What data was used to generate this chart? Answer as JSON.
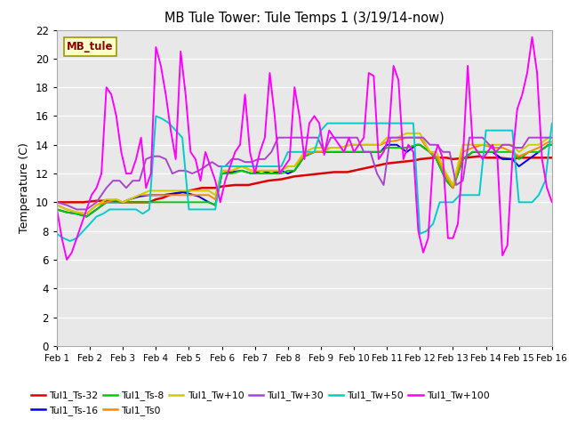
{
  "title": "MB Tule Tower: Tule Temps 1 (3/19/14-now)",
  "ylabel": "Temperature (C)",
  "xlim": [
    0,
    15
  ],
  "ylim": [
    0,
    22
  ],
  "yticks": [
    0,
    2,
    4,
    6,
    8,
    10,
    12,
    14,
    16,
    18,
    20,
    22
  ],
  "xtick_labels": [
    "Feb 1",
    "Feb 2",
    "Feb 3",
    "Feb 4",
    "Feb 5",
    "Feb 6",
    "Feb 7",
    "Feb 8",
    "Feb 9",
    "Feb 10",
    "Feb 11",
    "Feb 12",
    "Feb 13",
    "Feb 14",
    "Feb 15",
    "Feb 16"
  ],
  "bg_color": "#e8e8e8",
  "fig_color": "#ffffff",
  "series": [
    {
      "name": "Tul1_Ts-32",
      "color": "#dd0000",
      "lw": 1.8,
      "x": [
        0,
        0.2,
        0.4,
        0.6,
        0.8,
        1.0,
        1.2,
        1.4,
        1.6,
        1.8,
        2.0,
        2.2,
        2.4,
        2.6,
        2.8,
        3.0,
        3.2,
        3.4,
        3.6,
        3.8,
        4.0,
        4.2,
        4.4,
        4.6,
        4.8,
        5.0,
        5.2,
        5.4,
        5.6,
        5.8,
        6.0,
        6.2,
        6.4,
        6.6,
        6.8,
        7.0,
        7.2,
        7.4,
        7.6,
        7.8,
        8.0,
        8.2,
        8.4,
        8.6,
        8.8,
        9.0,
        9.2,
        9.4,
        9.6,
        9.8,
        10.0,
        10.2,
        10.4,
        10.6,
        10.8,
        11.0,
        11.2,
        11.4,
        11.6,
        11.8,
        12.0,
        12.2,
        12.4,
        12.6,
        12.8,
        13.0,
        13.2,
        13.4,
        13.6,
        13.8,
        14.0,
        14.2,
        14.4,
        14.6,
        14.8,
        15.0
      ],
      "y": [
        10.0,
        10.0,
        10.0,
        10.0,
        10.0,
        10.05,
        10.1,
        10.1,
        10.1,
        10.05,
        10.0,
        10.0,
        10.0,
        10.0,
        10.0,
        10.2,
        10.3,
        10.5,
        10.6,
        10.7,
        10.8,
        10.9,
        11.0,
        11.0,
        11.0,
        11.1,
        11.15,
        11.2,
        11.2,
        11.2,
        11.3,
        11.4,
        11.5,
        11.55,
        11.6,
        11.7,
        11.8,
        11.85,
        11.9,
        11.95,
        12.0,
        12.05,
        12.1,
        12.1,
        12.1,
        12.2,
        12.3,
        12.4,
        12.5,
        12.6,
        12.7,
        12.75,
        12.8,
        12.85,
        12.9,
        13.0,
        13.05,
        13.1,
        13.1,
        13.1,
        13.0,
        13.05,
        13.1,
        13.15,
        13.2,
        13.1,
        13.1,
        13.1,
        13.05,
        13.0,
        13.1,
        13.1,
        13.1,
        13.1,
        13.1,
        13.1
      ]
    },
    {
      "name": "Tul1_Ts-16",
      "color": "#0000dd",
      "lw": 1.4,
      "x": [
        0,
        0.3,
        0.6,
        0.9,
        1.2,
        1.5,
        1.8,
        2.0,
        2.2,
        2.5,
        2.8,
        3.0,
        3.2,
        3.5,
        3.8,
        4.0,
        4.3,
        4.6,
        4.8,
        5.0,
        5.3,
        5.6,
        5.9,
        6.2,
        6.5,
        6.8,
        7.0,
        7.2,
        7.5,
        7.8,
        8.0,
        8.3,
        8.6,
        8.9,
        9.2,
        9.5,
        9.8,
        10.0,
        10.3,
        10.6,
        10.9,
        11.0,
        11.3,
        11.5,
        11.8,
        12.0,
        12.3,
        12.6,
        12.9,
        13.2,
        13.5,
        13.8,
        14.0,
        14.3,
        14.6,
        14.9,
        15.0
      ],
      "y": [
        9.5,
        9.3,
        9.2,
        9.0,
        9.5,
        10.0,
        10.0,
        10.0,
        10.2,
        10.4,
        10.5,
        10.5,
        10.5,
        10.6,
        10.7,
        10.6,
        10.4,
        10.0,
        9.8,
        12.0,
        12.1,
        12.2,
        12.0,
        12.2,
        12.0,
        12.2,
        12.0,
        12.2,
        13.2,
        13.5,
        13.5,
        13.5,
        13.5,
        13.5,
        13.5,
        13.5,
        13.5,
        14.0,
        14.0,
        13.5,
        14.0,
        14.0,
        13.5,
        13.0,
        11.5,
        11.0,
        13.0,
        13.5,
        13.5,
        13.5,
        13.0,
        13.0,
        12.5,
        13.0,
        13.5,
        14.0,
        14.0
      ]
    },
    {
      "name": "Tul1_Ts-8",
      "color": "#00cc00",
      "lw": 1.4,
      "x": [
        0,
        0.3,
        0.6,
        0.9,
        1.2,
        1.5,
        1.8,
        2.0,
        2.2,
        2.5,
        2.8,
        3.0,
        3.2,
        3.5,
        3.8,
        4.0,
        4.3,
        4.6,
        4.8,
        5.0,
        5.3,
        5.6,
        5.9,
        6.2,
        6.5,
        6.8,
        7.0,
        7.2,
        7.5,
        7.8,
        8.0,
        8.3,
        8.6,
        8.9,
        9.2,
        9.5,
        9.8,
        10.0,
        10.3,
        10.6,
        10.9,
        11.0,
        11.3,
        11.5,
        11.8,
        12.0,
        12.3,
        12.6,
        12.9,
        13.2,
        13.5,
        13.8,
        14.0,
        14.3,
        14.6,
        14.9,
        15.0
      ],
      "y": [
        9.5,
        9.3,
        9.2,
        9.0,
        9.5,
        10.0,
        10.0,
        10.0,
        10.0,
        10.0,
        10.0,
        10.0,
        10.0,
        10.0,
        10.0,
        10.0,
        10.0,
        10.0,
        9.8,
        12.0,
        12.0,
        12.2,
        12.0,
        12.0,
        12.0,
        12.0,
        12.2,
        12.2,
        13.2,
        13.5,
        13.5,
        13.5,
        13.5,
        13.5,
        13.5,
        13.5,
        13.5,
        13.8,
        13.8,
        13.8,
        14.0,
        14.0,
        13.5,
        13.0,
        11.5,
        11.0,
        13.0,
        13.5,
        13.5,
        13.5,
        13.5,
        13.5,
        13.0,
        13.5,
        13.5,
        14.0,
        14.0
      ]
    },
    {
      "name": "Tul1_Ts0",
      "color": "#ff8800",
      "lw": 1.4,
      "x": [
        0,
        0.3,
        0.6,
        0.9,
        1.2,
        1.5,
        1.8,
        2.0,
        2.2,
        2.5,
        2.8,
        3.0,
        3.2,
        3.5,
        3.8,
        4.0,
        4.3,
        4.6,
        4.8,
        5.0,
        5.3,
        5.6,
        5.9,
        6.2,
        6.5,
        6.8,
        7.0,
        7.2,
        7.5,
        7.8,
        8.0,
        8.3,
        8.6,
        8.9,
        9.2,
        9.5,
        9.8,
        10.0,
        10.3,
        10.6,
        10.9,
        11.0,
        11.3,
        11.5,
        11.8,
        12.0,
        12.3,
        12.6,
        12.9,
        13.2,
        13.5,
        13.8,
        14.0,
        14.3,
        14.6,
        14.9,
        15.0
      ],
      "y": [
        9.8,
        9.5,
        9.3,
        9.2,
        9.8,
        10.0,
        10.2,
        10.0,
        10.2,
        10.5,
        10.5,
        10.5,
        10.5,
        10.5,
        10.5,
        10.5,
        10.5,
        10.5,
        10.2,
        12.2,
        12.2,
        12.5,
        12.2,
        12.2,
        12.2,
        12.2,
        12.5,
        12.5,
        13.3,
        13.5,
        13.5,
        13.8,
        13.8,
        14.0,
        14.0,
        14.0,
        14.0,
        14.2,
        14.3,
        14.5,
        14.5,
        14.5,
        13.5,
        13.2,
        11.8,
        11.0,
        13.5,
        13.8,
        14.0,
        13.8,
        13.8,
        13.5,
        13.2,
        13.5,
        13.8,
        14.2,
        14.2
      ]
    },
    {
      "name": "Tul1_Tw+10",
      "color": "#cccc00",
      "lw": 1.4,
      "x": [
        0,
        0.3,
        0.6,
        0.9,
        1.2,
        1.5,
        1.8,
        2.0,
        2.2,
        2.5,
        2.8,
        3.0,
        3.2,
        3.5,
        3.8,
        4.0,
        4.3,
        4.6,
        4.8,
        5.0,
        5.3,
        5.6,
        5.9,
        6.2,
        6.5,
        6.8,
        7.0,
        7.2,
        7.5,
        7.8,
        8.0,
        8.3,
        8.6,
        8.9,
        9.2,
        9.5,
        9.8,
        10.0,
        10.3,
        10.6,
        10.9,
        11.0,
        11.3,
        11.5,
        11.8,
        12.0,
        12.3,
        12.6,
        12.9,
        13.2,
        13.5,
        13.8,
        14.0,
        14.3,
        14.6,
        14.9,
        15.0
      ],
      "y": [
        9.8,
        9.5,
        9.3,
        9.2,
        9.8,
        10.2,
        10.2,
        10.0,
        10.2,
        10.5,
        10.8,
        10.8,
        10.8,
        10.8,
        10.8,
        10.8,
        10.8,
        10.8,
        10.5,
        12.2,
        12.2,
        12.5,
        12.2,
        12.2,
        12.2,
        12.2,
        12.5,
        12.5,
        13.5,
        13.8,
        13.8,
        13.8,
        13.8,
        14.0,
        14.0,
        14.0,
        14.0,
        14.5,
        14.5,
        14.8,
        14.8,
        14.8,
        13.5,
        13.5,
        12.0,
        11.2,
        14.0,
        14.0,
        14.0,
        14.0,
        14.0,
        14.0,
        13.5,
        14.0,
        14.0,
        14.5,
        14.5
      ]
    },
    {
      "name": "Tul1_Tw+30",
      "color": "#aa44cc",
      "lw": 1.4,
      "x": [
        0,
        0.3,
        0.6,
        0.9,
        1.2,
        1.5,
        1.7,
        1.9,
        2.1,
        2.3,
        2.5,
        2.7,
        2.9,
        3.1,
        3.3,
        3.5,
        3.7,
        3.9,
        4.1,
        4.3,
        4.5,
        4.7,
        4.9,
        5.1,
        5.3,
        5.5,
        5.7,
        5.9,
        6.1,
        6.3,
        6.5,
        6.7,
        6.9,
        7.1,
        7.3,
        7.5,
        7.7,
        7.9,
        8.1,
        8.3,
        8.5,
        8.7,
        8.9,
        9.1,
        9.3,
        9.5,
        9.7,
        9.9,
        10.1,
        10.3,
        10.5,
        10.7,
        10.9,
        11.1,
        11.3,
        11.5,
        11.7,
        11.9,
        12.1,
        12.3,
        12.5,
        12.7,
        12.9,
        13.1,
        13.3,
        13.5,
        13.7,
        13.9,
        14.1,
        14.3,
        14.5,
        14.7,
        14.9,
        15.0
      ],
      "y": [
        10.0,
        9.8,
        9.5,
        9.5,
        10.0,
        11.0,
        11.5,
        11.5,
        11.0,
        11.5,
        11.5,
        13.0,
        13.2,
        13.2,
        13.0,
        12.0,
        12.2,
        12.2,
        12.0,
        12.2,
        12.5,
        12.8,
        12.5,
        12.5,
        13.0,
        13.0,
        12.8,
        12.8,
        13.0,
        13.0,
        13.5,
        14.5,
        14.5,
        14.5,
        14.5,
        14.5,
        14.5,
        14.5,
        13.5,
        14.5,
        14.5,
        14.5,
        14.5,
        14.5,
        13.5,
        13.5,
        12.0,
        11.2,
        14.5,
        14.5,
        14.5,
        14.5,
        14.5,
        14.5,
        14.0,
        14.0,
        13.5,
        13.5,
        11.2,
        11.5,
        14.5,
        14.5,
        14.5,
        14.0,
        13.5,
        14.0,
        14.0,
        13.8,
        13.8,
        14.5,
        14.5,
        14.5,
        14.5,
        14.5
      ]
    },
    {
      "name": "Tul1_Tw+50",
      "color": "#00cccc",
      "lw": 1.4,
      "x": [
        0,
        0.2,
        0.4,
        0.6,
        0.8,
        1.0,
        1.2,
        1.4,
        1.6,
        1.8,
        2.0,
        2.2,
        2.4,
        2.6,
        2.8,
        3.0,
        3.2,
        3.4,
        3.6,
        3.8,
        4.0,
        4.2,
        4.4,
        4.6,
        4.8,
        5.0,
        5.2,
        5.4,
        5.6,
        5.8,
        6.0,
        6.2,
        6.4,
        6.6,
        6.8,
        7.0,
        7.2,
        7.4,
        7.6,
        7.8,
        8.0,
        8.2,
        8.4,
        8.6,
        8.8,
        9.0,
        9.2,
        9.4,
        9.6,
        9.8,
        10.0,
        10.2,
        10.4,
        10.6,
        10.8,
        11.0,
        11.2,
        11.4,
        11.6,
        11.8,
        12.0,
        12.2,
        12.4,
        12.6,
        12.8,
        13.0,
        13.2,
        13.4,
        13.6,
        13.8,
        14.0,
        14.2,
        14.4,
        14.6,
        14.8,
        15.0
      ],
      "y": [
        7.8,
        7.5,
        7.3,
        7.5,
        8.0,
        8.5,
        9.0,
        9.2,
        9.5,
        9.5,
        9.5,
        9.5,
        9.5,
        9.2,
        9.5,
        16.0,
        15.8,
        15.5,
        15.0,
        14.5,
        9.5,
        9.5,
        9.5,
        9.5,
        9.5,
        12.5,
        12.5,
        12.5,
        12.5,
        12.5,
        12.5,
        12.5,
        12.5,
        12.5,
        12.5,
        13.5,
        13.5,
        13.5,
        13.5,
        13.5,
        15.0,
        15.5,
        15.5,
        15.5,
        15.5,
        15.5,
        15.5,
        15.5,
        15.5,
        15.5,
        15.5,
        15.5,
        15.5,
        15.5,
        15.5,
        7.8,
        8.0,
        8.5,
        10.0,
        10.0,
        10.0,
        10.5,
        10.5,
        10.5,
        10.5,
        15.0,
        15.0,
        15.0,
        15.0,
        15.0,
        10.0,
        10.0,
        10.0,
        10.5,
        11.5,
        15.5
      ]
    },
    {
      "name": "Tul1_Tw+100",
      "color": "#ff00ff",
      "lw": 1.4,
      "x": [
        0,
        0.15,
        0.3,
        0.45,
        0.6,
        0.75,
        0.9,
        1.05,
        1.2,
        1.35,
        1.5,
        1.65,
        1.8,
        1.95,
        2.1,
        2.25,
        2.4,
        2.55,
        2.7,
        2.85,
        3.0,
        3.15,
        3.3,
        3.45,
        3.6,
        3.75,
        3.9,
        4.05,
        4.2,
        4.35,
        4.5,
        4.65,
        4.8,
        4.95,
        5.1,
        5.25,
        5.4,
        5.55,
        5.7,
        5.85,
        6.0,
        6.15,
        6.3,
        6.45,
        6.6,
        6.75,
        6.9,
        7.05,
        7.2,
        7.35,
        7.5,
        7.65,
        7.8,
        7.95,
        8.1,
        8.25,
        8.4,
        8.55,
        8.7,
        8.85,
        9.0,
        9.15,
        9.3,
        9.45,
        9.6,
        9.75,
        9.9,
        10.05,
        10.2,
        10.35,
        10.5,
        10.65,
        10.8,
        10.95,
        11.1,
        11.25,
        11.4,
        11.55,
        11.7,
        11.85,
        12.0,
        12.15,
        12.3,
        12.45,
        12.6,
        12.75,
        12.9,
        13.05,
        13.2,
        13.35,
        13.5,
        13.65,
        13.8,
        13.95,
        14.1,
        14.25,
        14.4,
        14.55,
        14.7,
        14.85,
        15.0
      ],
      "y": [
        9.5,
        7.5,
        6.0,
        6.5,
        7.5,
        8.5,
        9.5,
        10.5,
        11.0,
        12.0,
        18.0,
        17.5,
        16.0,
        13.5,
        12.0,
        12.0,
        13.0,
        14.5,
        11.0,
        12.0,
        20.8,
        19.5,
        17.5,
        15.0,
        13.0,
        20.5,
        17.5,
        13.5,
        13.0,
        11.5,
        13.5,
        12.5,
        11.5,
        10.0,
        11.5,
        12.5,
        13.5,
        14.0,
        17.5,
        13.5,
        12.0,
        13.5,
        14.5,
        19.0,
        16.0,
        12.0,
        12.5,
        13.0,
        18.0,
        16.0,
        13.0,
        15.5,
        16.0,
        15.5,
        13.3,
        15.0,
        14.5,
        14.0,
        13.5,
        14.5,
        13.5,
        14.0,
        14.5,
        19.0,
        18.8,
        13.0,
        13.5,
        14.5,
        19.5,
        18.5,
        13.0,
        14.0,
        13.5,
        8.0,
        6.5,
        7.5,
        13.0,
        14.0,
        13.0,
        7.5,
        7.5,
        8.5,
        13.0,
        19.5,
        14.0,
        13.5,
        13.0,
        13.5,
        14.0,
        13.0,
        6.3,
        7.0,
        13.0,
        16.5,
        17.5,
        19.0,
        21.5,
        19.0,
        13.0,
        11.0,
        10.0
      ]
    }
  ],
  "legend_entries": [
    {
      "label": "Tul1_Ts-32",
      "color": "#dd0000"
    },
    {
      "label": "Tul1_Ts-16",
      "color": "#0000dd"
    },
    {
      "label": "Tul1_Ts-8",
      "color": "#00cc00"
    },
    {
      "label": "Tul1_Ts0",
      "color": "#ff8800"
    },
    {
      "label": "Tul1_Tw+10",
      "color": "#cccc00"
    },
    {
      "label": "Tul1_Tw+30",
      "color": "#aa44cc"
    },
    {
      "label": "Tul1_Tw+50",
      "color": "#00cccc"
    },
    {
      "label": "Tul1_Tw+100",
      "color": "#ff00ff"
    }
  ],
  "station_label": "MB_tule",
  "station_label_color": "#8b0000",
  "station_box_facecolor": "#ffffcc",
  "station_box_edgecolor": "#999900"
}
